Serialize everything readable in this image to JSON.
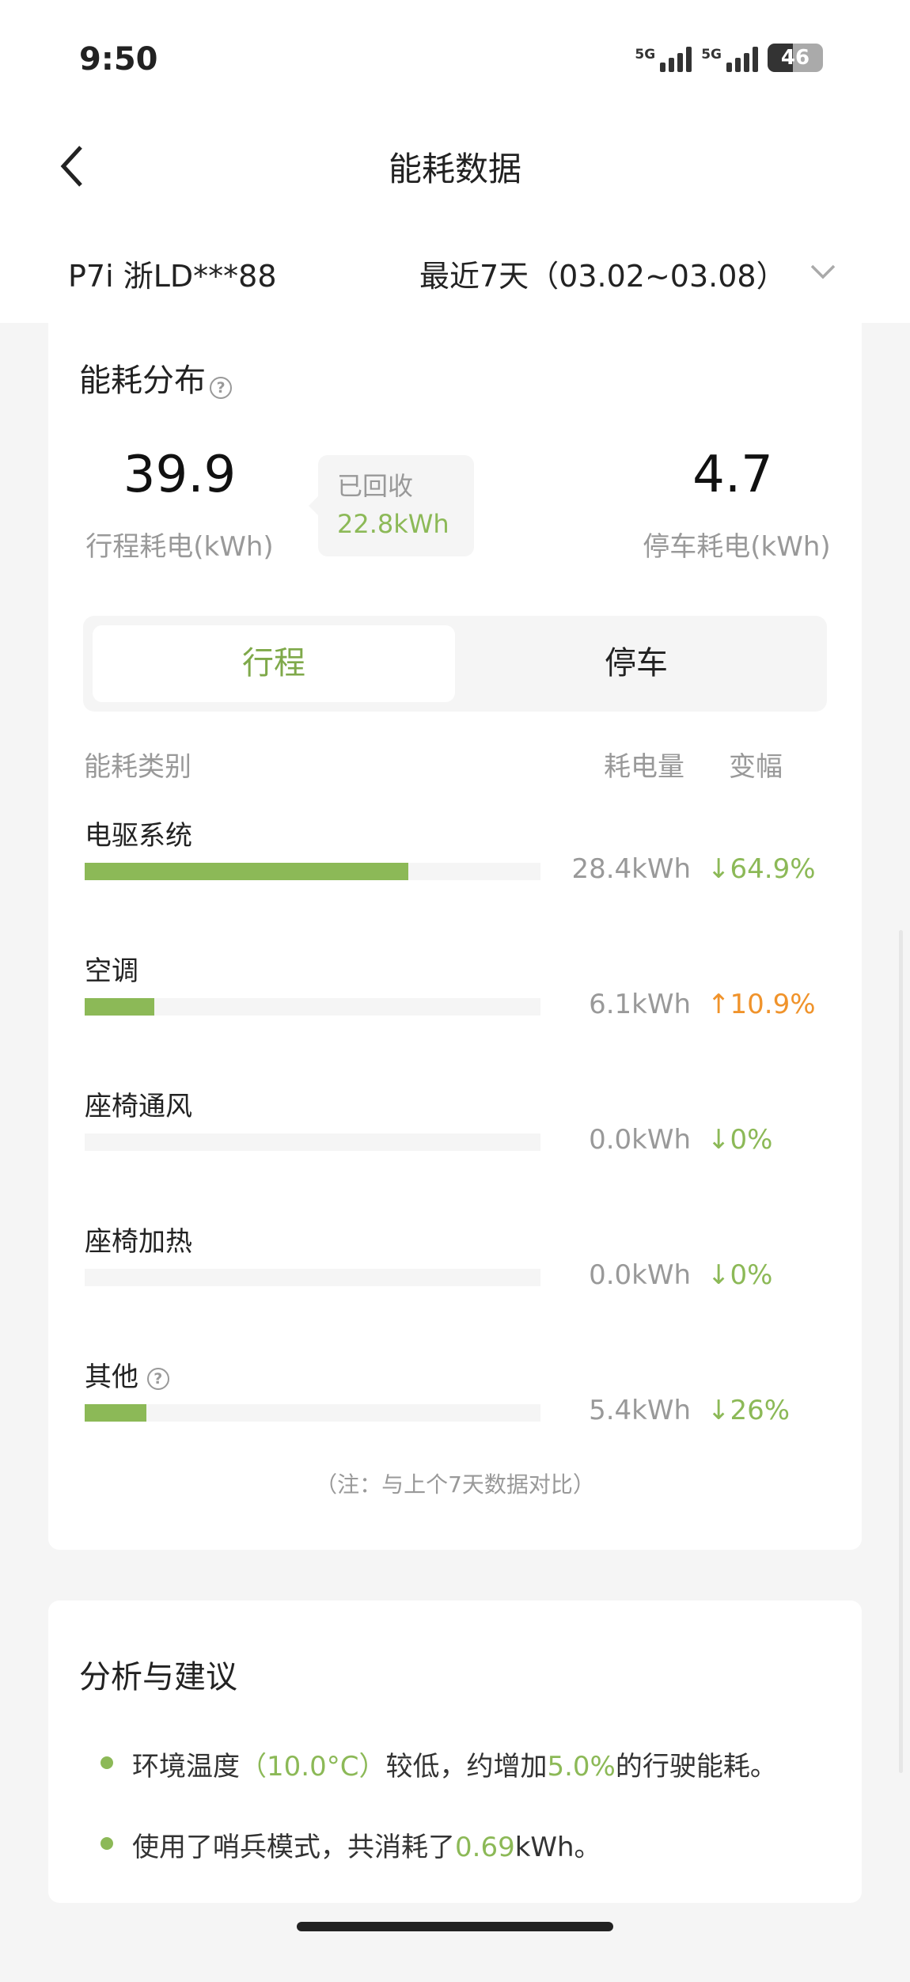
{
  "status_bar": {
    "time": "9:50",
    "network1": "5G",
    "network2": "5G",
    "battery": "46"
  },
  "header": {
    "title": "能耗数据",
    "back_icon": "chevron-left-icon"
  },
  "vehicle": {
    "name": "P7i 浙LD***88",
    "range": "最近7天（03.02~03.08）"
  },
  "distribution": {
    "title": "能耗分布",
    "trip_value": "39.9",
    "trip_label": "行程耗电(kWh)",
    "recovered_label": "已回收",
    "recovered_value": "22.8kWh",
    "park_value": "4.7",
    "park_label": "停车耗电(kWh)",
    "tabs": [
      "行程",
      "停车"
    ],
    "active_tab": "行程",
    "col_category": "能耗类别",
    "col_usage": "耗电量",
    "col_change": "变幅",
    "rows": [
      {
        "label": "电驱系统",
        "value": "28.4kWh",
        "change": "64.9%",
        "direction": "down",
        "fill_pct": 71
      },
      {
        "label": "空调",
        "value": "6.1kWh",
        "change": "10.9%",
        "direction": "up",
        "fill_pct": 15.25
      },
      {
        "label": "座椅通风",
        "value": "0.0kWh",
        "change": "0%",
        "direction": "down",
        "fill_pct": 0
      },
      {
        "label": "座椅加热",
        "value": "0.0kWh",
        "change": "0%",
        "direction": "down",
        "fill_pct": 0
      },
      {
        "label": "其他",
        "value": "5.4kWh",
        "change": "26%",
        "direction": "down",
        "fill_pct": 13.5,
        "help": true
      }
    ],
    "note": "（注：与上个7天数据对比）"
  },
  "analysis": {
    "title": "分析与建议",
    "b1": {
      "a": "环境温度",
      "b": "（10.0°C）",
      "c": "较低，约增加",
      "d": "5.0%",
      "e": "的行驶能耗。"
    },
    "b2": {
      "a": "使用了哨兵模式，共消耗了",
      "b": "0.69",
      "c": "kWh。"
    }
  },
  "colors": {
    "green": "#8cb957",
    "orange": "#f0932b",
    "down": "#8cb957",
    "up": "#f0932b"
  }
}
